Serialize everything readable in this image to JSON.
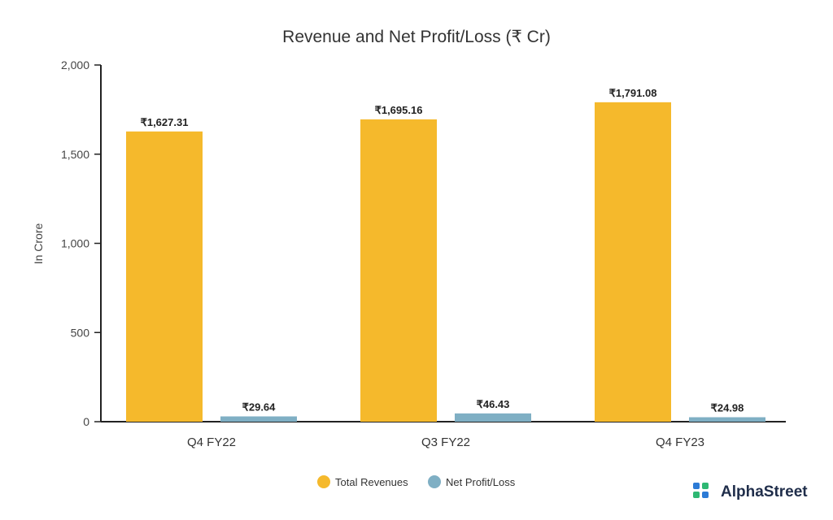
{
  "colors": {
    "revenue": "#F5B92C",
    "profit": "#7FAFC4",
    "brand_green": "#2EB873",
    "brand_blue": "#2C7BD6"
  },
  "chart_data": {
    "type": "bar",
    "title": "Revenue and Net Profit/Loss (₹ Cr)",
    "ylabel": "In Crore",
    "xlabel": "",
    "ylim": [
      0,
      2000
    ],
    "yticks": [
      0,
      500,
      1000,
      1500,
      2000
    ],
    "ytick_labels": [
      "0",
      "500",
      "1,000",
      "1,500",
      "2,000"
    ],
    "categories": [
      "Q4 FY22",
      "Q3 FY22",
      "Q4 FY23"
    ],
    "series": [
      {
        "name": "Total Revenues",
        "values": [
          1627.31,
          1695.16,
          1791.08
        ],
        "labels": [
          "₹1,627.31",
          "₹1,695.16",
          "₹1,791.08"
        ]
      },
      {
        "name": "Net Profit/Loss",
        "values": [
          29.64,
          46.43,
          24.98
        ],
        "labels": [
          "₹29.64",
          "₹46.43",
          "₹24.98"
        ]
      }
    ],
    "legend_position": "bottom-center",
    "grid": false
  },
  "brand": {
    "name": "AlphaStreet"
  }
}
